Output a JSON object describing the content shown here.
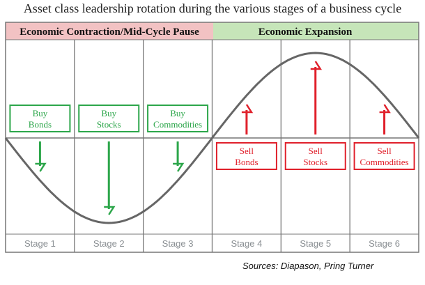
{
  "title": "Asset class leadership rotation during the various stages of a business cycle",
  "header": {
    "contraction": "Economic Contraction/Mid-Cycle Pause",
    "expansion": "Economic Expansion"
  },
  "actions": [
    {
      "line1": "Buy",
      "line2": "Bonds",
      "type": "buy"
    },
    {
      "line1": "Buy",
      "line2": "Stocks",
      "type": "buy"
    },
    {
      "line1": "Buy",
      "line2": "Commodities",
      "type": "buy"
    },
    {
      "line1": "Sell",
      "line2": "Bonds",
      "type": "sell"
    },
    {
      "line1": "Sell",
      "line2": "Stocks",
      "type": "sell"
    },
    {
      "line1": "Sell",
      "line2": "Commodities",
      "type": "sell"
    }
  ],
  "stages": [
    "Stage 1",
    "Stage 2",
    "Stage 3",
    "Stage 4",
    "Stage 5",
    "Stage 6"
  ],
  "sources": "Sources: Diapason, Pring Turner",
  "colors": {
    "contraction_bg": "#f2c2c3",
    "expansion_bg": "#c6e5b9",
    "buy": "#2ca64a",
    "sell": "#e0202b",
    "curve": "#666666",
    "grid": "#777777"
  }
}
